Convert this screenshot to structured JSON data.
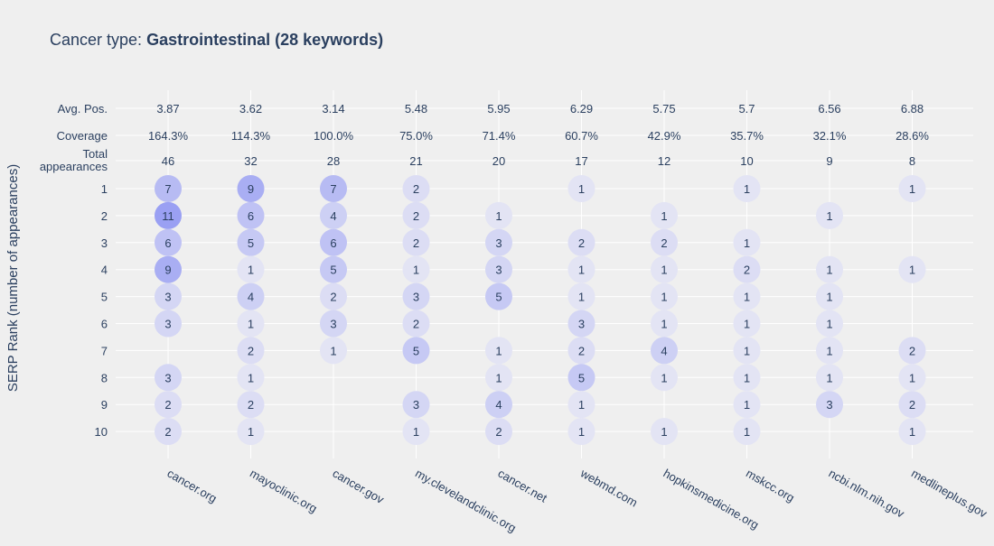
{
  "chart_data": {
    "type": "scatter",
    "title_prefix": "Cancer type: ",
    "title_bold": "Gastrointestinal (28 keywords)",
    "ylabel": "SERP Rank (number of appearances)",
    "sites": [
      "cancer.org",
      "mayoclinic.org",
      "cancer.gov",
      "my.clevelandclinic.org",
      "cancer.net",
      "webmd.com",
      "hopkinsmedicine.org",
      "mskcc.org",
      "ncbi.nlm.nih.gov",
      "medlineplus.gov"
    ],
    "summary_rows": [
      {
        "label": [
          "Avg. Pos."
        ],
        "values": [
          "3.87",
          "3.62",
          "3.14",
          "5.48",
          "5.95",
          "6.29",
          "5.75",
          "5.7",
          "6.56",
          "6.88"
        ]
      },
      {
        "label": [
          "Coverage"
        ],
        "values": [
          "164.3%",
          "114.3%",
          "100.0%",
          "75.0%",
          "71.4%",
          "60.7%",
          "42.9%",
          "35.7%",
          "32.1%",
          "28.6%"
        ]
      },
      {
        "label": [
          "Total",
          "appearances"
        ],
        "values": [
          "46",
          "32",
          "28",
          "21",
          "20",
          "17",
          "12",
          "10",
          "9",
          "8"
        ]
      }
    ],
    "ranks": [
      "1",
      "2",
      "3",
      "4",
      "5",
      "6",
      "7",
      "8",
      "9",
      "10"
    ],
    "counts": [
      [
        7,
        11,
        6,
        9,
        3,
        3,
        null,
        3,
        2,
        2
      ],
      [
        9,
        6,
        5,
        1,
        4,
        1,
        2,
        1,
        2,
        1
      ],
      [
        7,
        4,
        6,
        5,
        2,
        3,
        1,
        null,
        null,
        null
      ],
      [
        2,
        2,
        2,
        1,
        3,
        2,
        5,
        null,
        3,
        1
      ],
      [
        null,
        1,
        3,
        3,
        5,
        null,
        1,
        1,
        4,
        2
      ],
      [
        1,
        null,
        2,
        1,
        1,
        3,
        2,
        5,
        1,
        1
      ],
      [
        null,
        1,
        2,
        1,
        1,
        1,
        4,
        1,
        null,
        1
      ],
      [
        1,
        null,
        1,
        2,
        1,
        1,
        1,
        1,
        1,
        1
      ],
      [
        null,
        1,
        null,
        1,
        1,
        1,
        1,
        1,
        3,
        null
      ],
      [
        1,
        null,
        null,
        1,
        null,
        null,
        2,
        1,
        2,
        1
      ]
    ],
    "bubble_color_light": "#e3e4f4",
    "bubble_color_dark": "#9aa0f3",
    "grid": true,
    "grid_color": "#ffffff",
    "background": "#efefef"
  }
}
